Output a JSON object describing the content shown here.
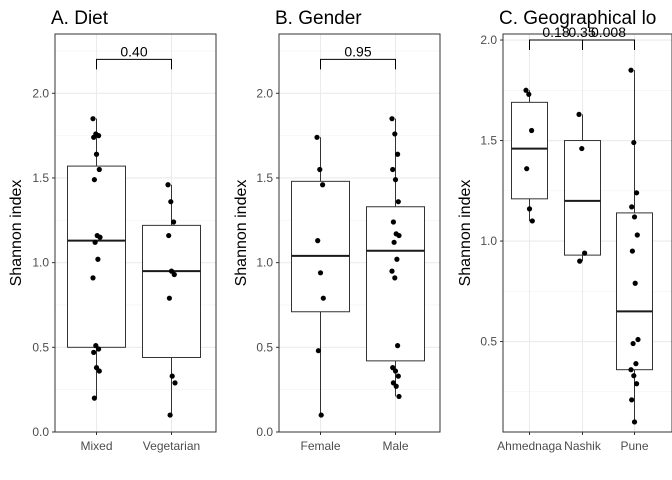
{
  "chart_data": [
    {
      "type": "box",
      "title": "A. Diet",
      "ylabel": "Shannon index",
      "ylim": [
        0,
        2.35
      ],
      "yticks": [
        0.0,
        0.5,
        1.0,
        1.5,
        2.0
      ],
      "ytick_labels": [
        "0.0",
        "0.5",
        "1.0",
        "1.5",
        "2.0"
      ],
      "grid": true,
      "categories": [
        "Mixed",
        "Vegetarian"
      ],
      "boxes": [
        {
          "q1": 0.5,
          "median": 1.13,
          "q3": 1.57,
          "whisker_low": 0.2,
          "whisker_high": 1.85
        },
        {
          "q1": 0.44,
          "median": 0.95,
          "q3": 1.22,
          "whisker_low": 0.1,
          "whisker_high": 1.46
        }
      ],
      "points": [
        [
          1.85,
          1.76,
          1.75,
          1.74,
          1.64,
          1.55,
          1.49,
          1.16,
          1.15,
          1.12,
          1.02,
          0.91,
          0.51,
          0.49,
          0.47,
          0.38,
          0.36,
          0.2
        ],
        [
          1.46,
          1.36,
          1.24,
          1.16,
          0.95,
          0.93,
          0.79,
          0.33,
          0.29,
          0.1
        ]
      ],
      "comparisons": [
        {
          "from": 0,
          "to": 1,
          "label": "0.40",
          "y": 2.2
        }
      ]
    },
    {
      "type": "box",
      "title": "B. Gender",
      "ylabel": "",
      "ylim": [
        0,
        2.35
      ],
      "yticks": [
        0.0,
        0.5,
        1.0,
        1.5,
        2.0
      ],
      "ytick_labels": [
        "0.0",
        "0.5",
        "1.0",
        "1.5",
        "2.0"
      ],
      "grid": true,
      "categories": [
        "Female",
        "Male"
      ],
      "boxes": [
        {
          "q1": 0.71,
          "median": 1.04,
          "q3": 1.48,
          "whisker_low": 0.1,
          "whisker_high": 1.74
        },
        {
          "q1": 0.42,
          "median": 1.07,
          "q3": 1.33,
          "whisker_low": 0.21,
          "whisker_high": 1.85
        }
      ],
      "points": [
        [
          1.74,
          1.55,
          1.46,
          1.13,
          0.94,
          0.79,
          0.48,
          0.1
        ],
        [
          1.85,
          1.76,
          1.64,
          1.55,
          1.49,
          1.36,
          1.24,
          1.17,
          1.16,
          1.12,
          1.02,
          0.95,
          0.91,
          0.51,
          0.38,
          0.36,
          0.33,
          0.29,
          0.27,
          0.21
        ]
      ],
      "comparisons": [
        {
          "from": 0,
          "to": 1,
          "label": "0.95",
          "y": 2.2
        }
      ]
    },
    {
      "type": "box",
      "title": "C. Geographical lo",
      "ylabel": "",
      "ylim": [
        0.05,
        2.03
      ],
      "yticks": [
        0.5,
        1.0,
        1.5,
        2.0
      ],
      "ytick_labels": [
        "0.5",
        "1.0",
        "1.5",
        "2.0"
      ],
      "grid": true,
      "categories": [
        "Ahmednaga",
        "Nashik",
        "Pune"
      ],
      "boxes": [
        {
          "q1": 1.21,
          "median": 1.46,
          "q3": 1.69,
          "whisker_low": 1.1,
          "whisker_high": 1.75
        },
        {
          "q1": 0.93,
          "median": 1.2,
          "q3": 1.5,
          "whisker_low": 0.9,
          "whisker_high": 1.63
        },
        {
          "q1": 0.36,
          "median": 0.65,
          "q3": 1.14,
          "whisker_low": 0.1,
          "whisker_high": 1.85
        }
      ],
      "points": [
        [
          1.75,
          1.73,
          1.55,
          1.36,
          1.16,
          1.1
        ],
        [
          1.63,
          1.46,
          0.94,
          0.9
        ],
        [
          1.85,
          1.49,
          1.24,
          1.17,
          1.12,
          1.03,
          0.95,
          0.79,
          0.51,
          0.49,
          0.39,
          0.36,
          0.33,
          0.29,
          0.21,
          0.1
        ]
      ],
      "comparisons": [
        {
          "from": 0,
          "to": 2,
          "label": "0.35",
          "y": 2.0
        },
        {
          "from": 1,
          "to": 2,
          "label": "0.008",
          "y": 2.0
        },
        {
          "from": 0,
          "to": 1,
          "label": "0.18",
          "y": 2.0
        }
      ]
    }
  ]
}
